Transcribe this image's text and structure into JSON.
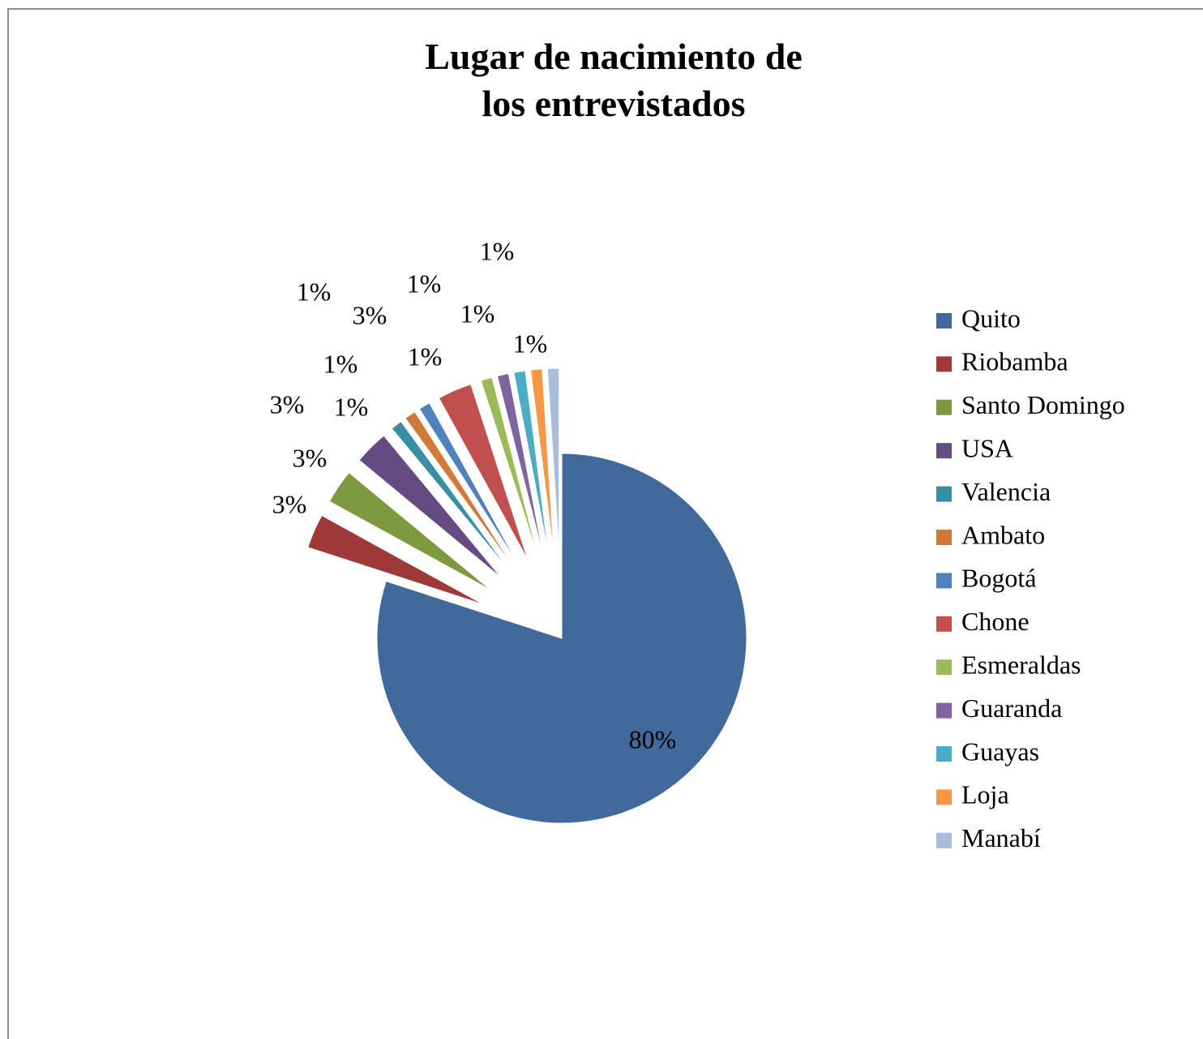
{
  "chart_data": {
    "type": "pie",
    "title": "Lugar de nacimiento de los entrevistados",
    "categories": [
      "Quito",
      "Riobamba",
      "Santo Domingo",
      "USA",
      "Valencia",
      "Ambato",
      "Bogotá",
      "Chone",
      "Esmeraldas",
      "Guaranda",
      "Guayas",
      "Loja",
      "Manabí"
    ],
    "values": [
      80,
      3,
      3,
      3,
      1,
      1,
      1,
      3,
      1,
      1,
      1,
      1,
      1
    ],
    "value_labels": [
      "80%",
      "3%",
      "3%",
      "3%",
      "1%",
      "1%",
      "1%",
      "3%",
      "1%",
      "1%",
      "1%",
      "1%",
      "1%"
    ],
    "colors": [
      "#41699b",
      "#9e3b38",
      "#7d9a3f",
      "#644b82",
      "#3a8ea4",
      "#d2793a",
      "#4f81bd",
      "#c0504d",
      "#9bbb59",
      "#8064a2",
      "#4bacc6",
      "#f79646",
      "#a9bcdb"
    ],
    "legend": "right"
  }
}
